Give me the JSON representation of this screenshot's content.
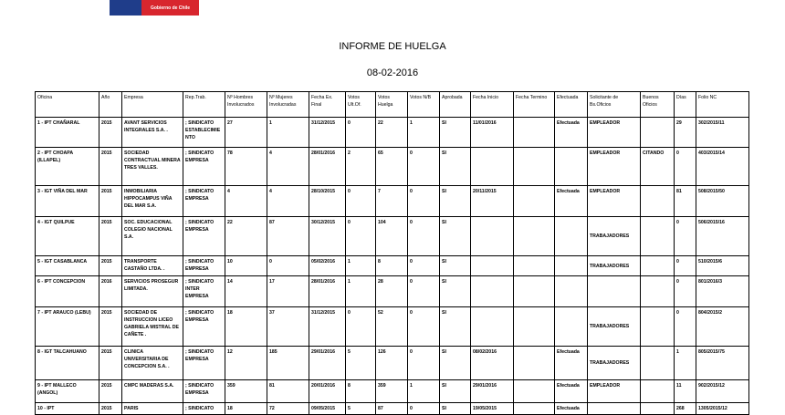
{
  "logo": {
    "text": "Gobierno de Chile",
    "colors": {
      "blue": "#1f3d8a",
      "red": "#d8262e"
    }
  },
  "title": "INFORME DE HUELGA",
  "date": "08-02-2016",
  "table": {
    "headers": [
      "Oficina",
      "Año",
      "Empresa",
      "Rep.Trab.",
      "Nº Hombres Involucrados",
      "Nº Mujeres Involucradas",
      "Fecha Ex. Final",
      "Votos Ult.Of.",
      "Votos Huelga",
      "Votos N/B",
      "Aprobada",
      "Fecha Inicio",
      "Fecha Termino",
      "Efectuada",
      "Solicitante de Bs.Oficios",
      "Buenos Oficios",
      "Días",
      "Folio NC"
    ],
    "rows": [
      [
        "1 - IPT CHAÑARAL",
        "2015",
        "AVANT SERVICIOS INTEGRALES S.A. .",
        "; SINDICATO ESTABLECIMIENTO",
        "27",
        "1",
        "31/12/2015",
        "0",
        "22",
        "1",
        "SI",
        "11/01/2016",
        "",
        "Efectuada",
        "EMPLEADOR",
        "",
        "29",
        "302/2015/11"
      ],
      [
        "2 - IPT CHOAPA (ILLAPEL)",
        "2015",
        "SOCIEDAD CONTRACTUAL MINERA TRES VALLES.",
        "; SINDICATO EMPRESA",
        "78",
        "4",
        "28/01/2016",
        "2",
        "65",
        "0",
        "SI",
        "",
        "",
        "",
        "EMPLEADOR",
        "CITANDO",
        "0",
        "403/2015/14"
      ],
      [
        "3 - IGT VIÑA DEL MAR",
        "2015",
        "INMOBILIARIA HIPPOCAMPUS VIÑA DEL MAR S.A.",
        "; SINDICATO EMPRESA",
        "4",
        "4",
        "28/10/2015",
        "0",
        "7",
        "0",
        "SI",
        "20/11/2015",
        "",
        "Efectuada",
        "EMPLEADOR",
        "",
        "81",
        "508/2015/50"
      ],
      [
        "4 - IGT QUILPUE",
        "2015",
        "SOC. EDUCACIONAL COLEGIO NACIONAL S.A.",
        "; SINDICATO EMPRESA",
        "22",
        "87",
        "30/12/2015",
        "0",
        "104",
        "0",
        "SI",
        "",
        "",
        "",
        "TRABAJADORES",
        "",
        "0",
        "506/2015/16"
      ],
      [
        "5 - IGT CASABLANCA",
        "2015",
        "TRANSPORTE CASTAÑO LTDA. .",
        "; SINDICATO EMPRESA",
        "10",
        "0",
        "05/02/2016",
        "1",
        "8",
        "0",
        "SI",
        "",
        "",
        "",
        "TRABAJADORES",
        "",
        "0",
        "510/2015/6"
      ],
      [
        "6 - IPT CONCEPCION",
        "2016",
        "SERVICIOS PROSEGUR LIMITADA.",
        "; SINDICATO INTER EMPRESA",
        "14",
        "17",
        "28/01/2016",
        "1",
        "28",
        "0",
        "SI",
        "",
        "",
        "",
        "",
        "",
        "0",
        "801/2016/3"
      ],
      [
        "7 - IPT ARAUCO (LEBU)",
        "2015",
        "SOCIEDAD DE INSTRUCCION LICEO GABRIELA MISTRAL DE CAÑETE .",
        "; SINDICATO EMPRESA",
        "18",
        "37",
        "31/12/2015",
        "0",
        "52",
        "0",
        "SI",
        "",
        "",
        "",
        "TRABAJADORES",
        "",
        "0",
        "804/2015/2"
      ],
      [
        "8 - IGT TALCAHUANO",
        "2015",
        "CLINICA UNIVERSITARIA DE CONCEPCION S.A. .",
        "; SINDICATO EMPRESA",
        "12",
        "185",
        "29/01/2016",
        "5",
        "126",
        "0",
        "SI",
        "08/02/2016",
        "",
        "Efectuada",
        "TRABAJADORES",
        "",
        "1",
        "805/2015/75"
      ],
      [
        "9 - IPT MALLECO (ANGOL)",
        "2015",
        "CMPC MADERAS S.A.",
        "; SINDICATO EMPRESA",
        "359",
        "81",
        "20/01/2016",
        "8",
        "359",
        "1",
        "SI",
        "29/01/2016",
        "",
        "Efectuada",
        "EMPLEADOR",
        "",
        "11",
        "902/2015/12"
      ],
      [
        "10 - IPT",
        "2015",
        "PARIS",
        "; SINDICATO",
        "18",
        "72",
        "09/05/2015",
        "5",
        "87",
        "0",
        "SI",
        "19/05/2015",
        "",
        "Efectuada",
        "",
        "",
        "268",
        "1305/2015/12"
      ]
    ]
  }
}
